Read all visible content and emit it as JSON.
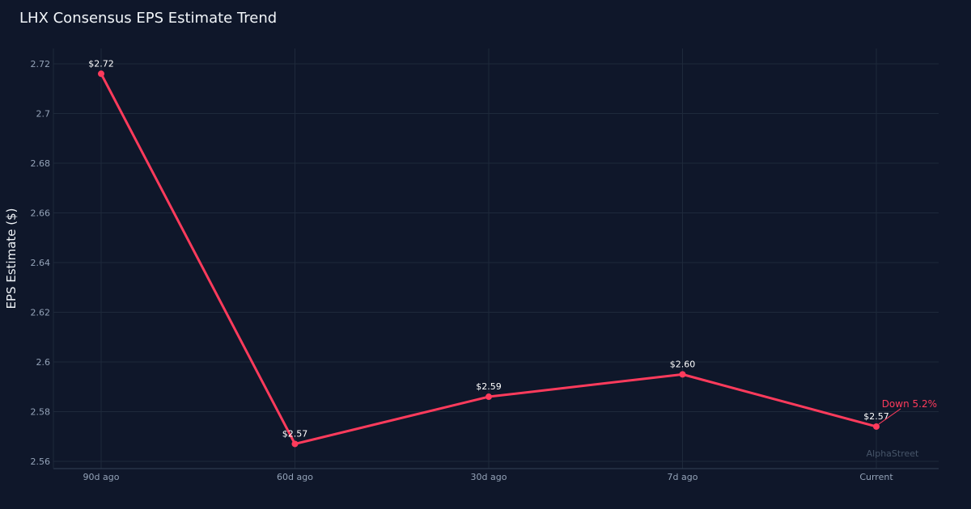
{
  "chart_data": {
    "type": "line",
    "title": "LHX Consensus EPS Estimate Trend",
    "xlabel": "",
    "ylabel": "EPS Estimate ($)",
    "categories": [
      "90d ago",
      "60d ago",
      "30d ago",
      "7d ago",
      "Current"
    ],
    "series": [
      {
        "values": [
          2.716,
          2.567,
          2.586,
          2.595,
          2.574
        ],
        "labels": [
          "$2.72",
          "$2.57",
          "$2.59",
          "$2.60",
          "$2.57"
        ],
        "color": "#ff3b5c"
      }
    ],
    "yticks": [
      "2.56",
      "2.58",
      "2.6",
      "2.62",
      "2.64",
      "2.66",
      "2.68",
      "2.7",
      "2.72"
    ],
    "ylim": [
      2.557,
      2.726
    ],
    "grid": true,
    "annotation": {
      "text": "Down 5.2%",
      "color": "#ff3b5c",
      "point": "Current"
    },
    "watermark": "AlphaStreet",
    "colors": {
      "background": "#0f172a",
      "grid": "#1e293b",
      "tick_text": "#94a3b8",
      "label_text": "#ffffff"
    }
  }
}
